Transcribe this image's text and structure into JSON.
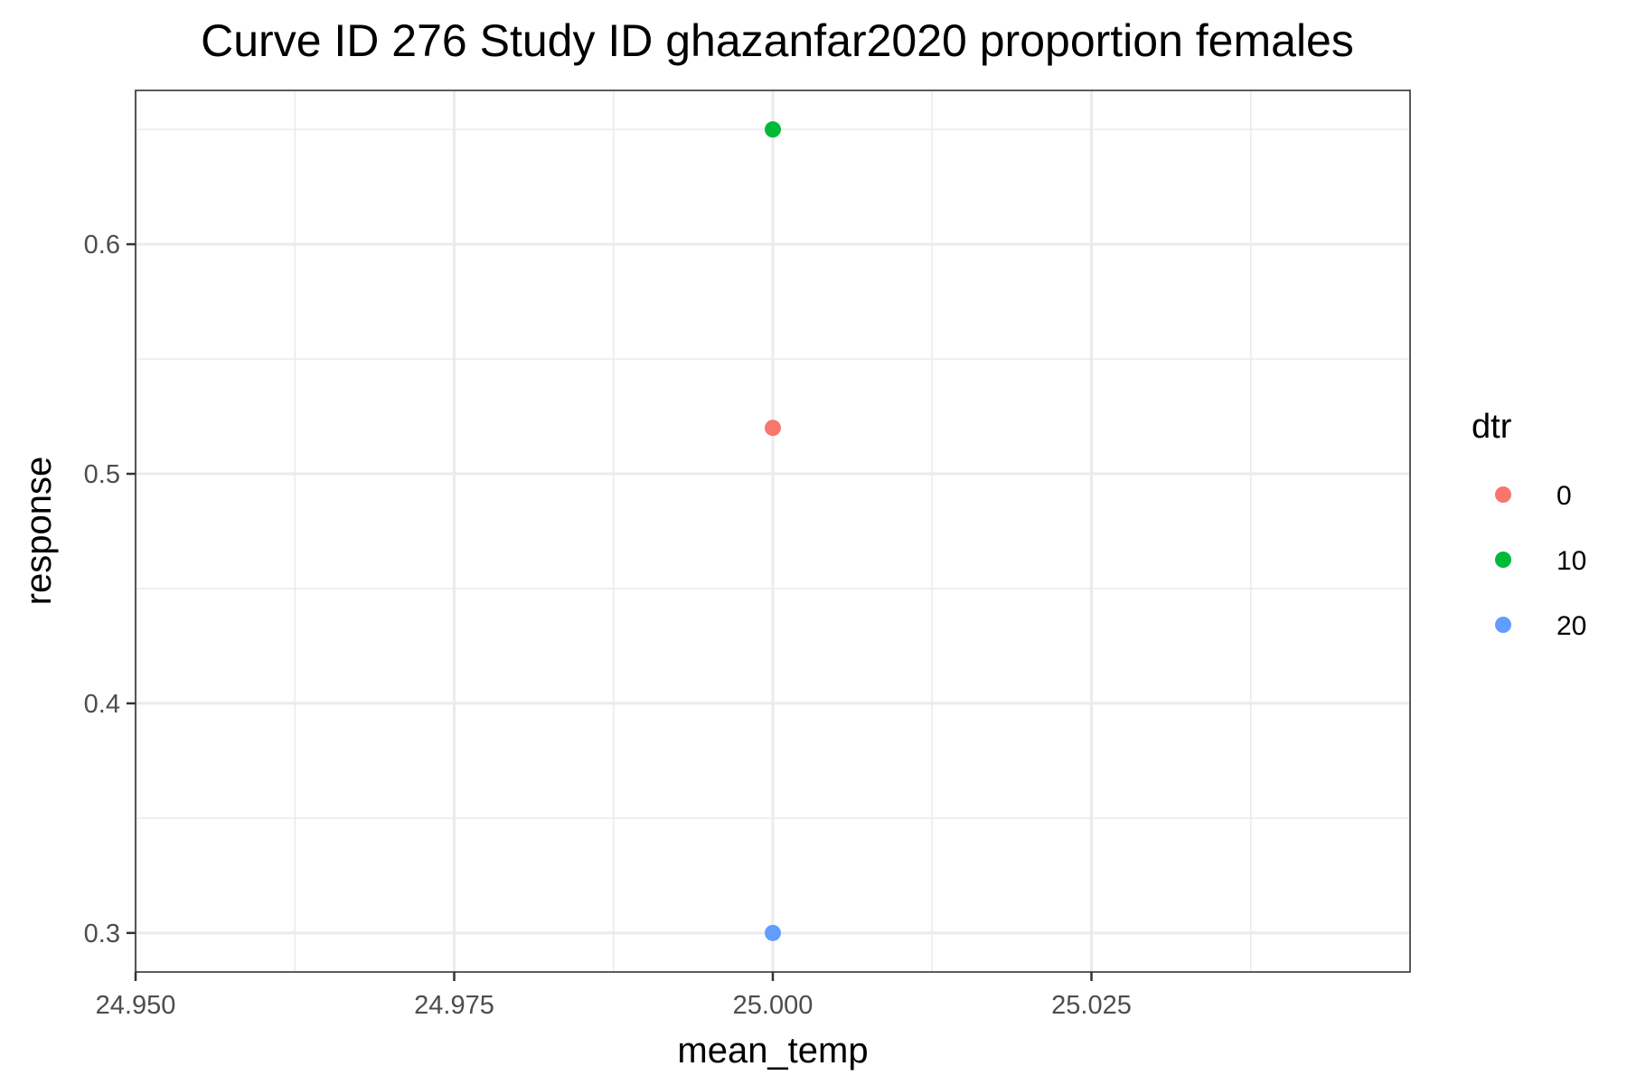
{
  "chart_data": {
    "type": "scatter",
    "title": "Curve ID 276 Study ID ghazanfar2020 proportion females",
    "xlabel": "mean_temp",
    "ylabel": "response",
    "xlim": [
      24.95,
      25.05
    ],
    "ylim": [
      0.283,
      0.667
    ],
    "x_ticks": [
      {
        "value": 24.95,
        "label": "24.950"
      },
      {
        "value": 24.975,
        "label": "24.975"
      },
      {
        "value": 25.0,
        "label": "25.000"
      },
      {
        "value": 25.025,
        "label": "25.025"
      }
    ],
    "y_ticks": [
      {
        "value": 0.3,
        "label": "0.3"
      },
      {
        "value": 0.4,
        "label": "0.4"
      },
      {
        "value": 0.5,
        "label": "0.5"
      },
      {
        "value": 0.6,
        "label": "0.6"
      }
    ],
    "x_minor": [
      24.9625,
      24.9875,
      25.0125,
      25.0375
    ],
    "y_minor": [
      0.35,
      0.45,
      0.55,
      0.65
    ],
    "grid": true,
    "legend": {
      "title": "dtr",
      "placement": "right",
      "entries": [
        {
          "label": "0",
          "color": "#F8766D"
        },
        {
          "label": "10",
          "color": "#00BA38"
        },
        {
          "label": "20",
          "color": "#619CFF"
        }
      ]
    },
    "series": [
      {
        "name": "0",
        "color": "#F8766D",
        "points": [
          {
            "x": 25.0,
            "y": 0.52
          }
        ]
      },
      {
        "name": "10",
        "color": "#00BA38",
        "points": [
          {
            "x": 25.0,
            "y": 0.65
          }
        ]
      },
      {
        "name": "20",
        "color": "#619CFF",
        "points": [
          {
            "x": 25.0,
            "y": 0.3
          }
        ]
      }
    ]
  }
}
